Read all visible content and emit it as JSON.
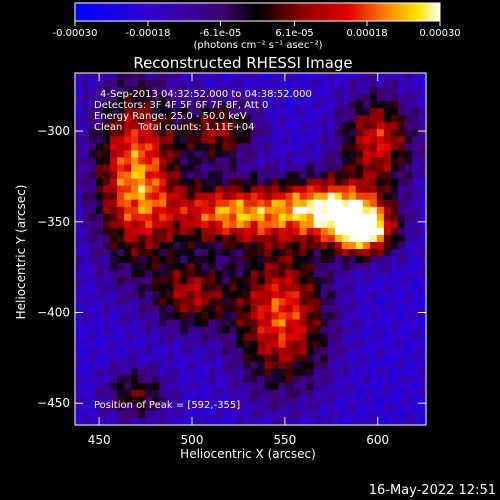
{
  "chart_data": {
    "type": "heatmap",
    "title": "Reconstructed RHESSI Image",
    "xlabel": "Heliocentric X (arcsec)",
    "ylabel": "Heliocentric Y (arcsec)",
    "xlim": [
      437,
      626
    ],
    "ylim": [
      -462,
      -268
    ],
    "x_ticks": [
      450,
      500,
      550,
      600
    ],
    "y_ticks": [
      -300,
      -350,
      -400,
      -450
    ],
    "colorbar": {
      "range": [
        -0.0003,
        0.0003
      ],
      "tick_values": [
        -0.0003,
        -0.00018,
        -6.1e-05,
        6.1e-05,
        0.00018,
        0.0003
      ],
      "tick_labels": [
        "-0.00030",
        "-0.00018",
        "-6.1e-05",
        "6.1e-05",
        "0.00018",
        "0.00030"
      ],
      "unit_label": "(photons cm⁻² s⁻¹ asec⁻²)"
    },
    "annotations": [
      "4-Sep-2013 04:32:52.000 to 04:38:52.000",
      "Detectors: 3F 4F 5F 6F 7F 8F, Att 0",
      "Energy Range: 25.0 - 50.0 keV",
      "Clean     Total counts: 1.11E+04"
    ],
    "peak_label": "Position of Peak = [592,-355]",
    "peak": [
      592,
      -355
    ],
    "emission_blobs": [
      {
        "x": 470,
        "y": -325,
        "sx": 16,
        "sy": 35,
        "amp": 0.00022
      },
      {
        "x": 520,
        "y": -345,
        "sx": 22,
        "sy": 12,
        "amp": 0.0002
      },
      {
        "x": 572,
        "y": -342,
        "sx": 20,
        "sy": 12,
        "amp": 0.00024
      },
      {
        "x": 592,
        "y": -355,
        "sx": 12,
        "sy": 10,
        "amp": 0.0003
      },
      {
        "x": 600,
        "y": -305,
        "sx": 14,
        "sy": 18,
        "amp": 0.00014
      },
      {
        "x": 548,
        "y": -402,
        "sx": 18,
        "sy": 28,
        "amp": 0.00018
      },
      {
        "x": 515,
        "y": -300,
        "sx": 14,
        "sy": 12,
        "amp": 8e-05
      },
      {
        "x": 500,
        "y": -390,
        "sx": 14,
        "sy": 14,
        "amp": 8e-05
      },
      {
        "x": 470,
        "y": -445,
        "sx": 12,
        "sy": 10,
        "amp": 3e-05
      }
    ],
    "background_level": -0.00018
  },
  "footer": {
    "timestamp": "16-May-2022 12:51"
  }
}
